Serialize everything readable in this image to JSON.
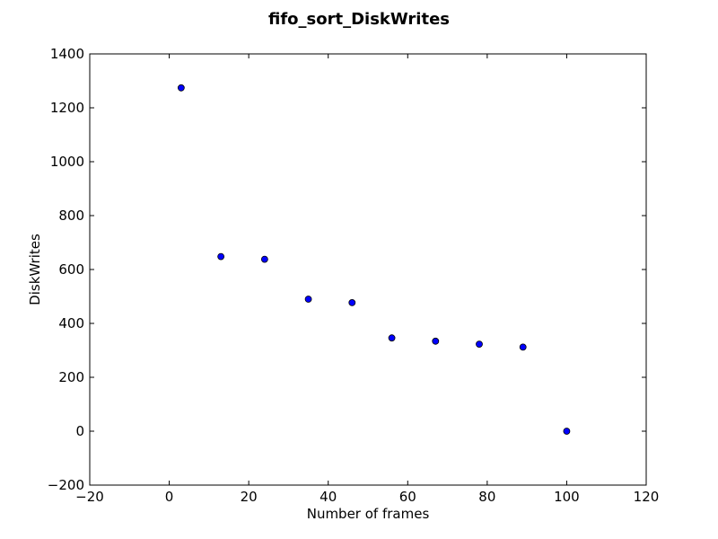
{
  "chart_data": {
    "type": "scatter",
    "title": "fifo_sort_DiskWrites",
    "xlabel": "Number of frames",
    "ylabel": "DiskWrites",
    "xlim": [
      -20,
      120
    ],
    "ylim": [
      -200,
      1400
    ],
    "xticks": [
      -20,
      0,
      20,
      40,
      60,
      80,
      100,
      120
    ],
    "yticks": [
      -200,
      0,
      200,
      400,
      600,
      800,
      1000,
      1200,
      1400
    ],
    "xtick_labels": [
      "−20",
      "0",
      "20",
      "40",
      "60",
      "80",
      "100",
      "120"
    ],
    "ytick_labels": [
      "−200",
      "0",
      "200",
      "400",
      "600",
      "800",
      "1000",
      "1200",
      "1400"
    ],
    "grid": false,
    "marker_color": "#0000ff",
    "marker_edge_color": "#000000",
    "series": [
      {
        "x": [
          3,
          13,
          24,
          35,
          46,
          56,
          67,
          78,
          89,
          100
        ],
        "y": [
          1274,
          648,
          638,
          490,
          477,
          346,
          334,
          323,
          312,
          0
        ]
      }
    ]
  }
}
